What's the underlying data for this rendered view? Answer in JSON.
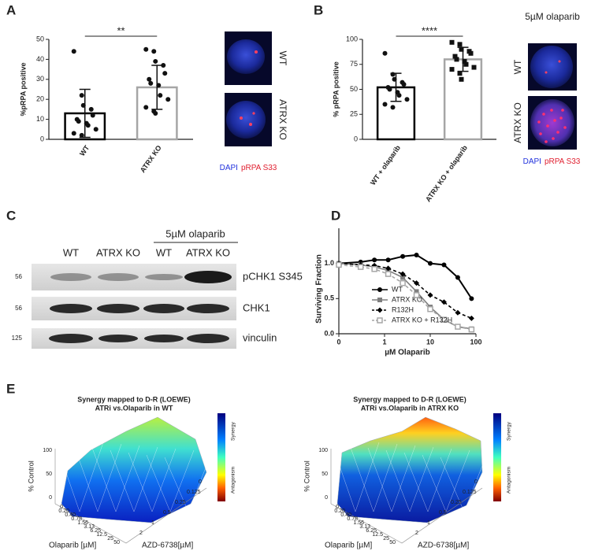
{
  "panel_labels": [
    "A",
    "B",
    "C",
    "D",
    "E"
  ],
  "chart_data": [
    {
      "type": "bar",
      "categories": [
        "WT",
        "ATRX KO"
      ],
      "values": [
        13,
        26
      ],
      "errors": [
        12,
        11
      ],
      "points": [
        [
          44,
          22,
          17,
          15,
          12,
          10,
          9,
          8,
          7,
          5,
          3,
          2
        ],
        [
          45,
          44,
          39,
          37,
          33,
          30,
          28,
          27,
          22,
          20,
          16,
          14,
          13
        ]
      ],
      "point_markers": [
        "circle",
        "circle"
      ],
      "colors": [
        "#000000",
        "#a6a6a6"
      ],
      "y_label": "%pRPA positive",
      "annotation": "**",
      "ylim": [
        0,
        50
      ],
      "yticks": [
        0,
        10,
        20,
        30,
        40,
        50
      ]
    },
    {
      "type": "bar",
      "categories": [
        "WT + olaparib",
        "ATRX KO + olaparib"
      ],
      "values": [
        52,
        80
      ],
      "errors": [
        14,
        12
      ],
      "points": [
        [
          86,
          65,
          60,
          57,
          55,
          52,
          50,
          47,
          44,
          40,
          35,
          32
        ],
        [
          97,
          95,
          90,
          88,
          86,
          83,
          80,
          78,
          75,
          72,
          70,
          66,
          60
        ]
      ],
      "point_markers": [
        "circle",
        "square"
      ],
      "colors": [
        "#000000",
        "#a6a6a6"
      ],
      "y_label": "% pRPA positive",
      "annotation": "****",
      "ylim": [
        0,
        100
      ],
      "yticks": [
        0,
        25,
        50,
        75,
        100
      ]
    },
    {
      "type": "line",
      "x_label": "µM Olaparib",
      "y_label": "Surviving Fraction",
      "log_x": true,
      "x": [
        0.1,
        0.3,
        0.6,
        1.2,
        2.5,
        5,
        10,
        20,
        40,
        80
      ],
      "series": [
        {
          "name": "WT",
          "color": "#000000",
          "marker": "circle",
          "dashed": false,
          "values": [
            1.0,
            1.02,
            1.05,
            1.05,
            1.1,
            1.12,
            1.0,
            0.98,
            0.8,
            0.5
          ]
        },
        {
          "name": "ATRX KO",
          "color": "#7f7f7f",
          "marker": "square",
          "dashed": false,
          "values": [
            1.0,
            0.98,
            0.95,
            0.9,
            0.8,
            0.6,
            0.38,
            0.2,
            0.1,
            0.07
          ]
        },
        {
          "name": "R132H",
          "color": "#000000",
          "marker": "diamond",
          "dashed": true,
          "values": [
            1.0,
            0.98,
            0.97,
            0.93,
            0.85,
            0.72,
            0.55,
            0.45,
            0.3,
            0.22
          ]
        },
        {
          "name": "ATRX KO + R132H",
          "color": "#a6a6a6",
          "marker": "open-square",
          "dashed": true,
          "values": [
            0.98,
            0.95,
            0.92,
            0.85,
            0.72,
            0.55,
            0.35,
            0.2,
            0.1,
            0.06
          ]
        }
      ],
      "xlim": [
        0.1,
        100
      ],
      "xticks": [
        {
          "value": 0.1,
          "label": "0"
        },
        1,
        10,
        100
      ],
      "ylim": [
        0,
        1.5
      ],
      "yticks": [
        {
          "value": 0,
          "label": "0.0"
        },
        {
          "value": 0.5,
          "label": "0.5"
        },
        {
          "value": 1,
          "label": "1.0"
        }
      ],
      "legend": "bottom-left"
    }
  ],
  "panel_a_images": {
    "labels": [
      "WT",
      "ATRX KO"
    ],
    "stain": [
      "DAPI",
      "pRPA S33"
    ]
  },
  "panel_b_images": {
    "title": "5µM olaparib",
    "labels": [
      "WT",
      "ATRX KO"
    ],
    "stain": [
      "DAPI",
      "pRPA S33"
    ]
  },
  "panel_c": {
    "treatment": "5µM olaparib",
    "lanes": [
      "WT",
      "ATRX KO",
      "WT",
      "ATRX KO"
    ],
    "rows": [
      {
        "protein": "pCHK1 S345",
        "mw": 56
      },
      {
        "protein": "CHK1",
        "mw": 56
      },
      {
        "protein": "vinculin",
        "mw": 125
      }
    ]
  },
  "surfaces": [
    {
      "title": [
        "Synergy mapped to D-R (LOEWE)",
        "ATRi vs.Olaparib in WT"
      ],
      "z_label": "% Control",
      "z_ticks": [
        "100",
        "50",
        "0"
      ],
      "x_label": "Olaparib [µM]",
      "x_ticks": [
        "0",
        "0.20",
        "0.40",
        "0.78",
        "1.56",
        "3.13",
        "6.25",
        "12.5",
        "25",
        "50"
      ],
      "y_label": "AZD-6738[µM]",
      "y_ticks": [
        "0",
        "0.125",
        "0.25",
        "0.5",
        "1",
        "2"
      ],
      "colorbar_labels": [
        "Synergy",
        "Antagonism"
      ]
    },
    {
      "title": [
        "Synergy mapped to D-R (LOEWE)",
        "ATRi vs.Olaparib in ATRX KO"
      ],
      "z_label": "% Control",
      "z_ticks": [
        "100",
        "50",
        "0"
      ],
      "x_label": "Olaparib [µM]",
      "x_ticks": [
        "0",
        "0.20",
        "0.40",
        "0.78",
        "1.56",
        "3.13",
        "6.25",
        "12.5",
        "25",
        "50"
      ],
      "y_label": "AZD-6738[µM]",
      "y_ticks": [
        "0",
        "0.125",
        "0.25",
        "0.5",
        "1",
        "2"
      ],
      "colorbar_labels": [
        "Synergy",
        "Antagonism"
      ]
    }
  ]
}
